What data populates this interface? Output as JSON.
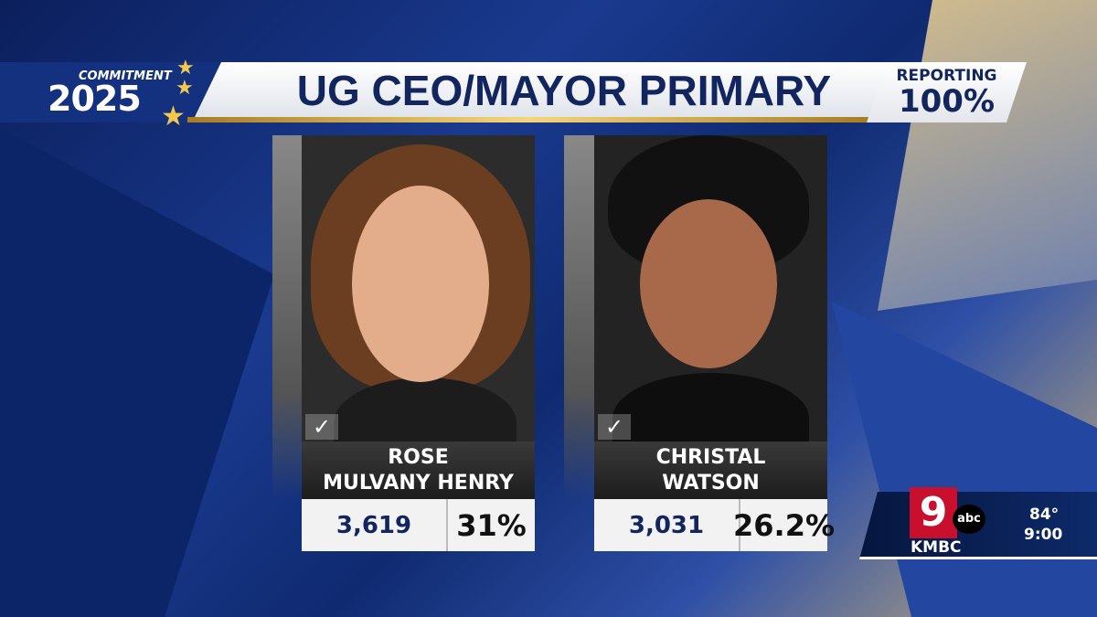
{
  "header": {
    "brand_small": "COMMITMENT",
    "brand_year": "2025",
    "title": "UG CEO/MAYOR PRIMARY",
    "reporting_label": "REPORTING",
    "reporting_value": "100%"
  },
  "candidates": [
    {
      "first": "ROSE",
      "last": "MULVANY HENRY",
      "votes": "3,619",
      "percent": "31%",
      "checked": true
    },
    {
      "first": "CHRISTAL",
      "last": "WATSON",
      "votes": "3,031",
      "percent": "26.2%",
      "checked": true
    }
  ],
  "station": {
    "channel": "9",
    "network": "abc",
    "call_sign": "KMBC",
    "temperature": "84°",
    "time": "9:00",
    "brand_color": "#c8102e"
  },
  "colors": {
    "navy": "#12255e",
    "gold": "#f2c94c"
  }
}
